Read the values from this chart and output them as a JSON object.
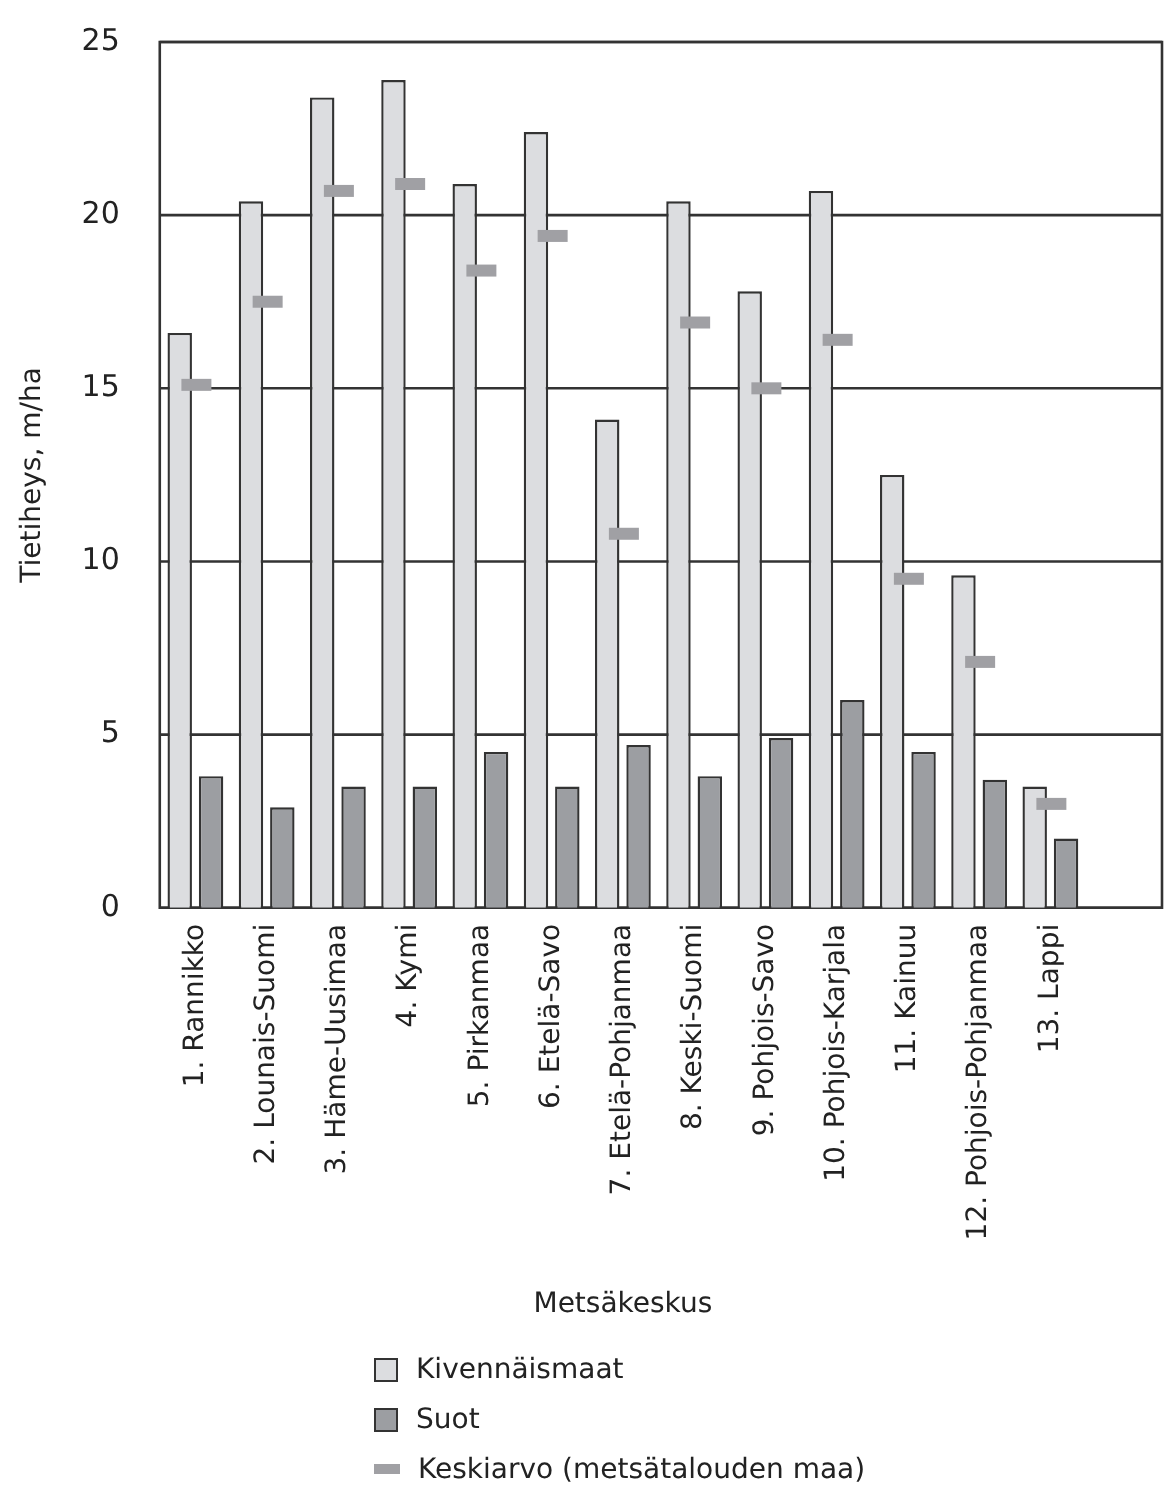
{
  "chart_data": {
    "type": "bar",
    "xlabel": "Metsäkeskus",
    "ylabel": "Tietiheys, m/ha",
    "categories": [
      "1. Rannikko",
      "2. Lounais-Suomi",
      "3. Häme-Uusimaa",
      "4. Kymi",
      "5. Pirkanmaa",
      "6. Etelä-Savo",
      "7. Etelä-Pohjanmaa",
      "8. Keski-Suomi",
      "9. Pohjois-Savo",
      "10. Pohjois-Karjala",
      "11. Kainuu",
      "12. Pohjois-Pohjanmaa",
      "13. Lappi"
    ],
    "series": [
      {
        "name": "Kivennäismaat",
        "color": "#dcdde0",
        "values": [
          16.6,
          20.4,
          23.4,
          23.9,
          20.9,
          22.4,
          14.1,
          20.4,
          17.8,
          20.7,
          12.5,
          9.6,
          3.5
        ]
      },
      {
        "name": "Suot",
        "color": "#9c9ea2",
        "values": [
          3.8,
          2.9,
          3.5,
          3.5,
          4.5,
          3.5,
          4.7,
          3.8,
          4.9,
          6.0,
          4.5,
          3.7,
          2.0
        ]
      },
      {
        "name": "Keskiarvo (metsätalouden maa)",
        "type": "scatter",
        "color": "#a0a0a4",
        "values": [
          15.1,
          17.5,
          20.7,
          20.9,
          18.4,
          19.4,
          10.8,
          16.9,
          15.0,
          16.4,
          9.5,
          7.1,
          3.0
        ]
      }
    ],
    "ylim": [
      0,
      25
    ],
    "yticks": [
      0,
      5,
      10,
      15,
      20,
      25
    ],
    "grid": "y",
    "legend": "bottom"
  }
}
